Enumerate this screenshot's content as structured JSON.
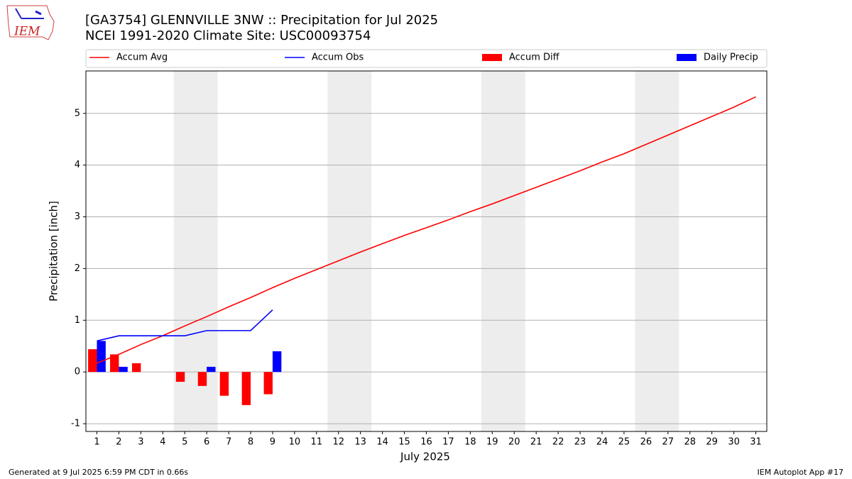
{
  "logo_text": "IEM",
  "footer_left": "Generated at 9 Jul 2025 6:59 PM CDT in 0.66s",
  "footer_right": "IEM Autoplot App #17",
  "chart_data": {
    "type": "bar",
    "title": "[GA3754] GLENNVILLE 3NW :: Precipitation for Jul 2025",
    "subtitle": "NCEI 1991-2020 Climate Site: USC00093754",
    "x_label": "July 2025",
    "y_label": "Precipitation [inch]",
    "x": [
      1,
      2,
      3,
      4,
      5,
      6,
      7,
      8,
      9,
      10,
      11,
      12,
      13,
      14,
      15,
      16,
      17,
      18,
      19,
      20,
      21,
      22,
      23,
      24,
      25,
      26,
      27,
      28,
      29,
      30,
      31
    ],
    "xlim": [
      0.5,
      31.5
    ],
    "xticks": [
      1,
      2,
      3,
      4,
      5,
      6,
      7,
      8,
      9,
      10,
      11,
      12,
      13,
      14,
      15,
      16,
      17,
      18,
      19,
      20,
      21,
      22,
      23,
      24,
      25,
      26,
      27,
      28,
      29,
      30,
      31
    ],
    "ylim": [
      -1.15,
      5.82
    ],
    "yticks": [
      -1,
      0,
      1,
      2,
      3,
      4,
      5
    ],
    "grid": true,
    "series": [
      {
        "name": "Accum Avg",
        "color": "#ff0000",
        "kind": "line",
        "values": [
          0.17,
          0.34,
          0.53,
          0.7,
          0.89,
          1.07,
          1.26,
          1.44,
          1.63,
          1.81,
          1.98,
          2.15,
          2.32,
          2.48,
          2.64,
          2.79,
          2.94,
          3.1,
          3.25,
          3.41,
          3.57,
          3.73,
          3.89,
          4.06,
          4.22,
          4.4,
          4.58,
          4.76,
          4.94,
          5.12,
          5.32
        ]
      },
      {
        "name": "Accum Obs",
        "color": "#0000ff",
        "kind": "line",
        "values": [
          0.6,
          0.7,
          0.7,
          0.7,
          0.7,
          0.8,
          0.8,
          0.8,
          1.2,
          null,
          null,
          null,
          null,
          null,
          null,
          null,
          null,
          null,
          null,
          null,
          null,
          null,
          null,
          null,
          null,
          null,
          null,
          null,
          null,
          null,
          null
        ]
      },
      {
        "name": "Accum Diff",
        "color": "#ff0000",
        "kind": "bar",
        "values": [
          0.44,
          0.34,
          0.17,
          0,
          -0.19,
          -0.27,
          -0.46,
          -0.64,
          -0.43,
          null,
          null,
          null,
          null,
          null,
          null,
          null,
          null,
          null,
          null,
          null,
          null,
          null,
          null,
          null,
          null,
          null,
          null,
          null,
          null,
          null,
          null
        ]
      },
      {
        "name": "Daily Precip",
        "color": "#0000ff",
        "kind": "bar",
        "values": [
          0.6,
          0.1,
          0,
          0,
          0,
          0.1,
          0,
          0,
          0.4,
          null,
          null,
          null,
          null,
          null,
          null,
          null,
          null,
          null,
          null,
          null,
          null,
          null,
          null,
          null,
          null,
          null,
          null,
          null,
          null,
          null,
          null
        ]
      }
    ]
  }
}
